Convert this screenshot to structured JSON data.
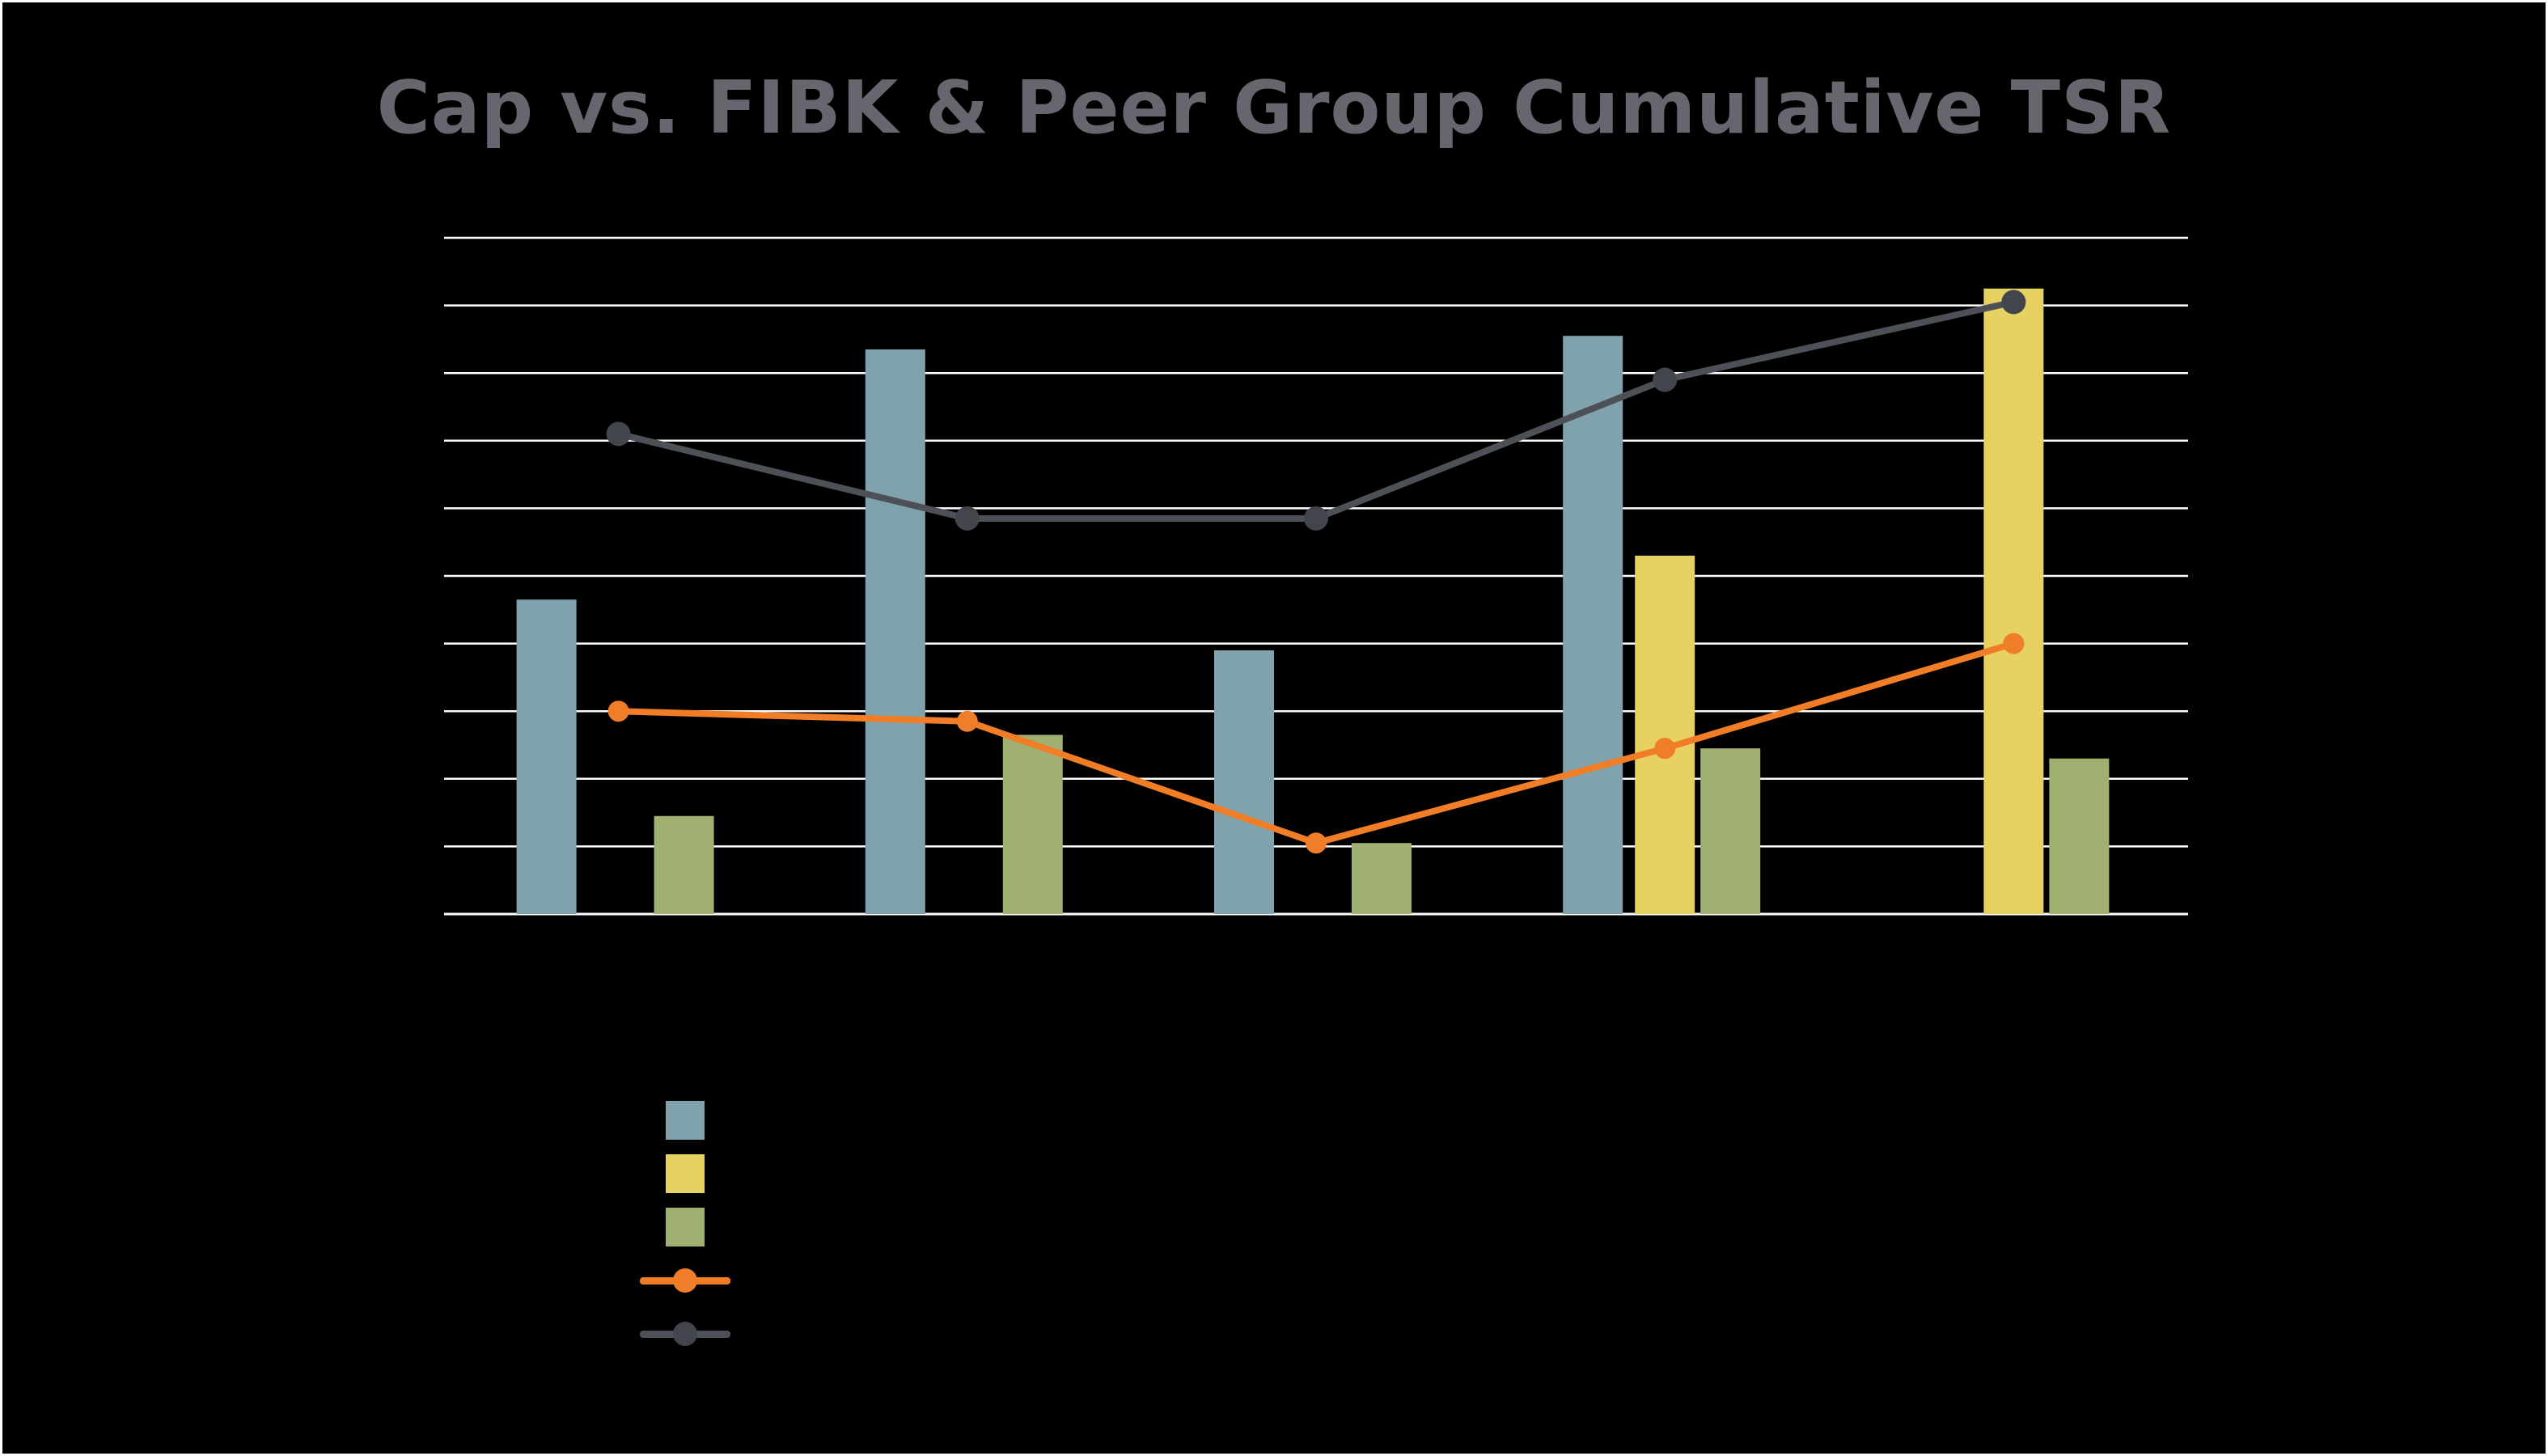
{
  "title": "Cap vs. FIBK & Peer Group Cumulative TSR",
  "colors": {
    "background": "#000000",
    "page_border": "#ffffff",
    "title_text": "#66666f",
    "gridline": "#ffffff",
    "bar_teal": "#7fa2ac",
    "bar_yellow": "#e7d161",
    "bar_green": "#a0b071",
    "line_orange": "#f17d26",
    "marker_orange": "#ef7d29",
    "line_gray": "#4e5058",
    "marker_gray": "#43454c"
  },
  "chart_data": {
    "type": "combo (bar + line)",
    "title": "Cap vs. FIBK & Peer Group Cumulative TSR",
    "xlabel": "",
    "ylabel": "",
    "categories": [
      "",
      "",
      "",
      "",
      ""
    ],
    "axis_tick_labels_visible": false,
    "ylim": [
      0,
      10
    ],
    "gridlines": {
      "horizontal": true,
      "count": 11,
      "interval": 1
    },
    "note_units": "no axis labels visible; values estimated in gridline units (1 unit = 1 gridline interval, baseline = 0)",
    "series": [
      {
        "name": "teal-bar-series",
        "type": "bar",
        "slot": "teal",
        "color_key": "bar_teal",
        "values": [
          4.65,
          8.35,
          3.9,
          8.55,
          0
        ]
      },
      {
        "name": "yellow-bar-series",
        "type": "bar",
        "slot": "yellow",
        "color_key": "bar_yellow",
        "values": [
          0,
          0,
          0,
          5.3,
          9.25
        ]
      },
      {
        "name": "green-bar-series",
        "type": "bar",
        "slot": "green",
        "color_key": "bar_green",
        "values": [
          1.45,
          2.65,
          1.05,
          2.45,
          2.3
        ]
      },
      {
        "name": "orange-line-series",
        "type": "line",
        "color_key": "line_orange",
        "marker_color_key": "marker_orange",
        "marker_radius": 13,
        "values": [
          3.0,
          2.85,
          1.05,
          2.45,
          4.0
        ]
      },
      {
        "name": "gray-line-series",
        "type": "line",
        "color_key": "line_gray",
        "marker_color_key": "marker_gray",
        "marker_radius": 15,
        "values": [
          7.1,
          5.85,
          5.85,
          7.9,
          9.05
        ]
      }
    ],
    "legend": {
      "position": "bottom-left",
      "entries": [
        {
          "swatch": "square",
          "color_key": "bar_teal",
          "label": ""
        },
        {
          "swatch": "square",
          "color_key": "bar_yellow",
          "label": ""
        },
        {
          "swatch": "square",
          "color_key": "bar_green",
          "label": ""
        },
        {
          "swatch": "line-marker",
          "color_key": "line_orange",
          "marker_color_key": "marker_orange",
          "label": ""
        },
        {
          "swatch": "line-marker",
          "color_key": "line_gray",
          "marker_color_key": "marker_gray",
          "label": ""
        }
      ]
    }
  }
}
